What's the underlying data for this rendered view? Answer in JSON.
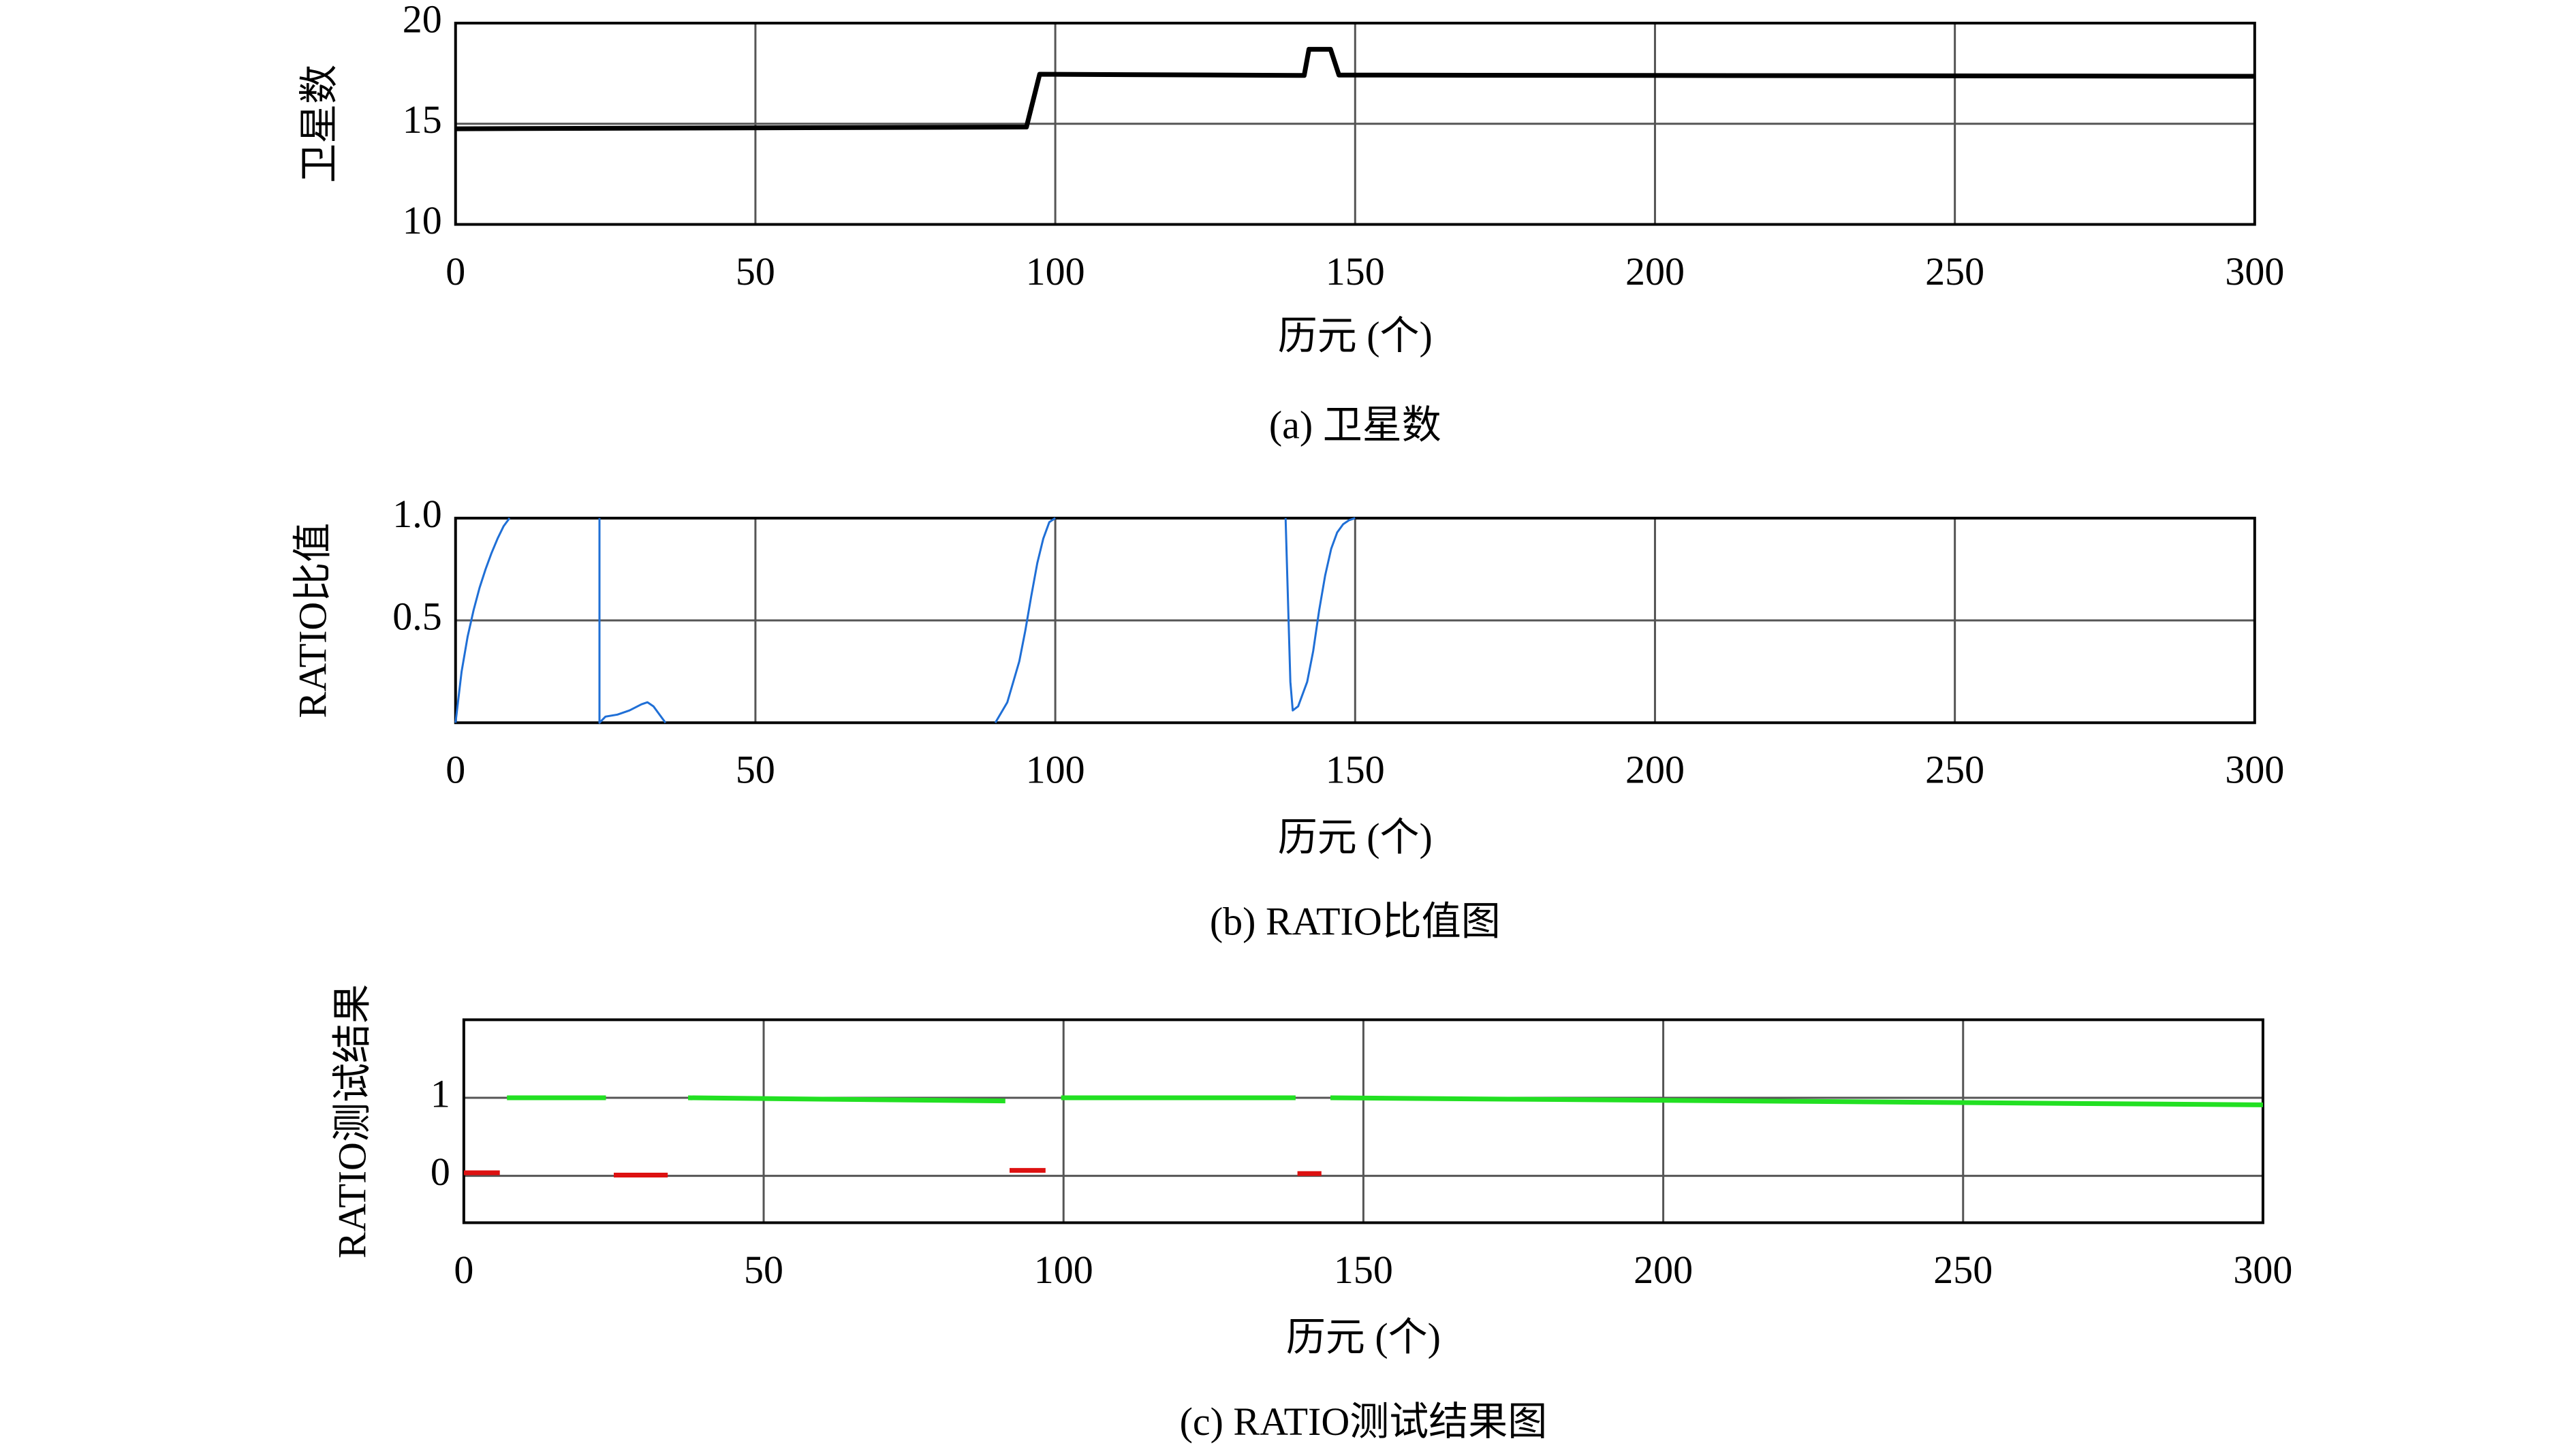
{
  "chart_data": [
    {
      "type": "line",
      "y_label": "卫星数",
      "x_label": "历元 (个)",
      "caption": "(a) 卫星数",
      "xlim": [
        0,
        300
      ],
      "ylim": [
        10,
        20
      ],
      "xticks": [
        0,
        50,
        100,
        150,
        200,
        250,
        300
      ],
      "yticks": [
        10,
        15,
        20
      ],
      "grid": true,
      "series": [
        {
          "color": "#000000",
          "x": [
            0,
            95.2,
            97.4,
            141.5,
            142.3,
            145.9,
            147.3,
            300
          ],
          "values": [
            14.75,
            14.84,
            17.46,
            17.4,
            18.7,
            18.7,
            17.42,
            17.36
          ]
        }
      ]
    },
    {
      "type": "line",
      "y_label": "RATIO比值",
      "x_label": "历元 (个)",
      "caption": "(b) RATIO比值图",
      "xlim": [
        0,
        300
      ],
      "ylim": [
        0,
        1
      ],
      "xticks": [
        0,
        50,
        100,
        150,
        200,
        250,
        300
      ],
      "yticks": [
        0.5,
        {
          "value": 1,
          "label": "1.0"
        }
      ],
      "grid": true,
      "series": [
        {
          "color": "#1f6fd6",
          "x": [
            0,
            1,
            2,
            3,
            4,
            5,
            6,
            7,
            8,
            9,
            null,
            24,
            24,
            25,
            27,
            29,
            31,
            32,
            33,
            34,
            35,
            null,
            90,
            92,
            94,
            95,
            96,
            97,
            98,
            99,
            100,
            null,
            138.4,
            138.8,
            139.2,
            139.6,
            140.5,
            142,
            143,
            144,
            145,
            146,
            147,
            148,
            149,
            150
          ],
          "values": [
            0,
            0.25,
            0.42,
            0.55,
            0.66,
            0.75,
            0.83,
            0.9,
            0.96,
            1.0,
            null,
            1.0,
            0,
            0.03,
            0.04,
            0.06,
            0.09,
            0.1,
            0.08,
            0.04,
            0,
            null,
            0,
            0.1,
            0.3,
            0.45,
            0.62,
            0.78,
            0.9,
            0.98,
            1.0,
            null,
            1.0,
            0.6,
            0.2,
            0.06,
            0.08,
            0.2,
            0.35,
            0.55,
            0.72,
            0.85,
            0.93,
            0.97,
            0.99,
            1.0
          ]
        }
      ]
    },
    {
      "type": "line",
      "y_label": "RATIO测试结果",
      "x_label": "历元 (个)",
      "caption": "(c) RATIO测试结果图",
      "xlim": [
        0,
        300
      ],
      "ylim": [
        -0.6,
        2.0
      ],
      "xticks": [
        0,
        50,
        100,
        150,
        200,
        250,
        300
      ],
      "yticks": [
        0,
        1
      ],
      "grid": true,
      "series": [
        {
          "color": "#22e022",
          "x": [
            7.2,
            23.7,
            null,
            37.4,
            90.3,
            null,
            99.6,
            138.7,
            null,
            144.5,
            300
          ],
          "values": [
            1,
            1,
            null,
            1,
            0.96,
            null,
            1,
            1,
            null,
            1,
            0.91
          ]
        },
        {
          "color": "#dd1111",
          "x": [
            0,
            6,
            null,
            25,
            34,
            null,
            91,
            97,
            null,
            139,
            143
          ],
          "values": [
            0.04,
            0.04,
            null,
            0.01,
            0.01,
            null,
            0.07,
            0.07,
            null,
            0.03,
            0.03
          ]
        }
      ]
    }
  ]
}
